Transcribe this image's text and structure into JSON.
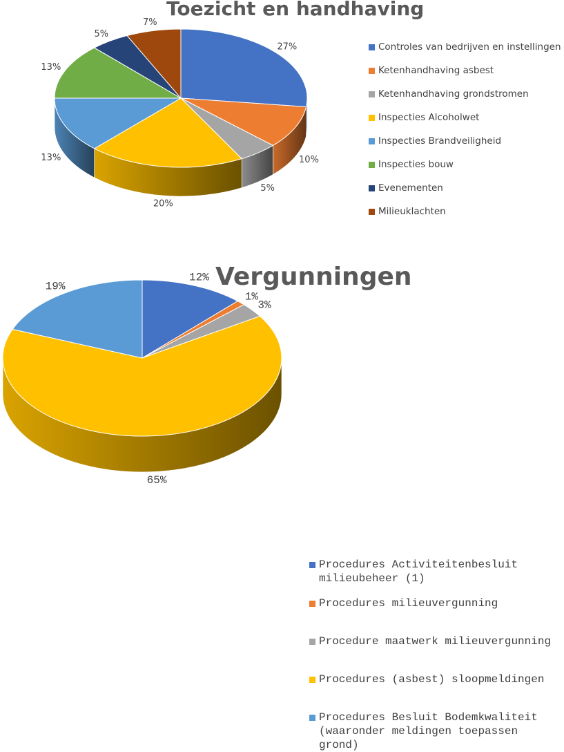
{
  "chart_data": [
    {
      "type": "pie",
      "title": "Toezicht en handhaving",
      "categories": [
        "Controles van bedrijven en instellingen",
        "Ketenhandhaving asbest",
        "Ketenhandhaving grondstromen",
        "Inspecties Alcoholwet",
        "Inspecties Brandveiligheid",
        "Inspecties bouw",
        "Evenementen",
        "Milieuklachten"
      ],
      "values": [
        27,
        10,
        5,
        20,
        13,
        13,
        5,
        7
      ],
      "data_labels": [
        "27%",
        "10%",
        "5%",
        "20%",
        "13%",
        "13%",
        "5%",
        "7%"
      ],
      "colors": [
        "#4472C4",
        "#ED7D31",
        "#A5A5A5",
        "#FFC000",
        "#5B9BD5",
        "#70AD47",
        "#264478",
        "#9E480E"
      ],
      "legend_position": "right",
      "style": "3d"
    },
    {
      "type": "pie",
      "title": "Vergunningen",
      "categories": [
        "Procedures Activiteitenbesluit\nmilieubeheer (1)",
        "Procedures milieuvergunning",
        "Procedure maatwerk milieuvergunning",
        "Procedures (asbest) sloopmeldingen",
        "Procedures Besluit Bodemkwaliteit\n(waaronder meldingen toepassen\ngrond)"
      ],
      "values": [
        12,
        1,
        3,
        65,
        19
      ],
      "data_labels": [
        "12%",
        "1%",
        "3%",
        "65%",
        "19%"
      ],
      "colors": [
        "#4472C4",
        "#ED7D31",
        "#A5A5A5",
        "#FFC000",
        "#5B9BD5"
      ],
      "legend_position": "right",
      "style": "3d"
    }
  ]
}
